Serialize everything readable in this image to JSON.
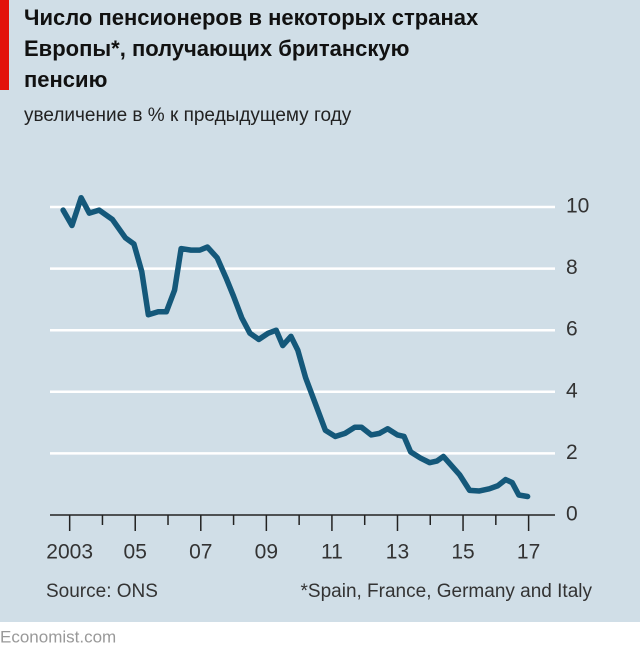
{
  "chart_data": {
    "type": "line",
    "title_lines": [
      "Число пенсионеров в некоторых странах",
      "Европы*, получающих британскую",
      "пенсию"
    ],
    "subtitle": "увеличение в % к предыдущему году",
    "source": "Source: ONS",
    "note": "*Spain, France, Germany and Italy",
    "brand": "Economist.com",
    "x": [
      2002.8,
      2003.07,
      2003.35,
      2003.6,
      2003.9,
      2004.3,
      2004.7,
      2004.96,
      2005.2,
      2005.4,
      2005.7,
      2005.95,
      2006.2,
      2006.4,
      2006.7,
      2006.97,
      2007.2,
      2007.5,
      2007.77,
      2008.0,
      2008.25,
      2008.5,
      2008.77,
      2009.05,
      2009.3,
      2009.5,
      2009.75,
      2009.96,
      2010.2,
      2010.5,
      2010.8,
      2011.1,
      2011.4,
      2011.7,
      2011.9,
      2012.2,
      2012.45,
      2012.7,
      2013.0,
      2013.2,
      2013.4,
      2013.7,
      2013.98,
      2014.2,
      2014.4,
      2014.65,
      2014.9,
      2015.2,
      2015.5,
      2015.8,
      2016.06,
      2016.3,
      2016.5,
      2016.7,
      2016.97
    ],
    "series": [
      {
        "name": "pensioners",
        "color": "#14587a",
        "values": [
          9.9,
          9.4,
          10.3,
          9.8,
          9.9,
          9.6,
          9.0,
          8.8,
          7.9,
          6.5,
          6.6,
          6.6,
          7.3,
          8.65,
          8.6,
          8.6,
          8.7,
          8.35,
          7.7,
          7.1,
          6.4,
          5.9,
          5.7,
          5.9,
          6.0,
          5.5,
          5.8,
          5.35,
          4.45,
          3.6,
          2.75,
          2.55,
          2.65,
          2.85,
          2.85,
          2.6,
          2.65,
          2.8,
          2.6,
          2.55,
          2.05,
          1.85,
          1.7,
          1.75,
          1.9,
          1.6,
          1.3,
          0.8,
          0.78,
          0.85,
          0.95,
          1.15,
          1.05,
          0.65,
          0.6
        ]
      }
    ],
    "xlim": [
      2002.4,
      2017.5
    ],
    "xticks": [
      2003,
      {
        "value": 2005,
        "label": "05"
      },
      {
        "value": 2007,
        "label": "07"
      },
      {
        "value": 2009,
        "label": "09"
      },
      {
        "value": 2011,
        "label": "11"
      },
      {
        "value": 2013,
        "label": "13"
      },
      {
        "value": 2015,
        "label": "15"
      },
      {
        "value": 2017,
        "label": "17"
      }
    ],
    "xminorticks": [
      2004,
      2006,
      2008,
      2010,
      2012,
      2014,
      2016
    ],
    "ylim": [
      0,
      10
    ],
    "yticks": [
      0,
      2,
      4,
      6,
      8,
      10
    ],
    "grid": true
  }
}
